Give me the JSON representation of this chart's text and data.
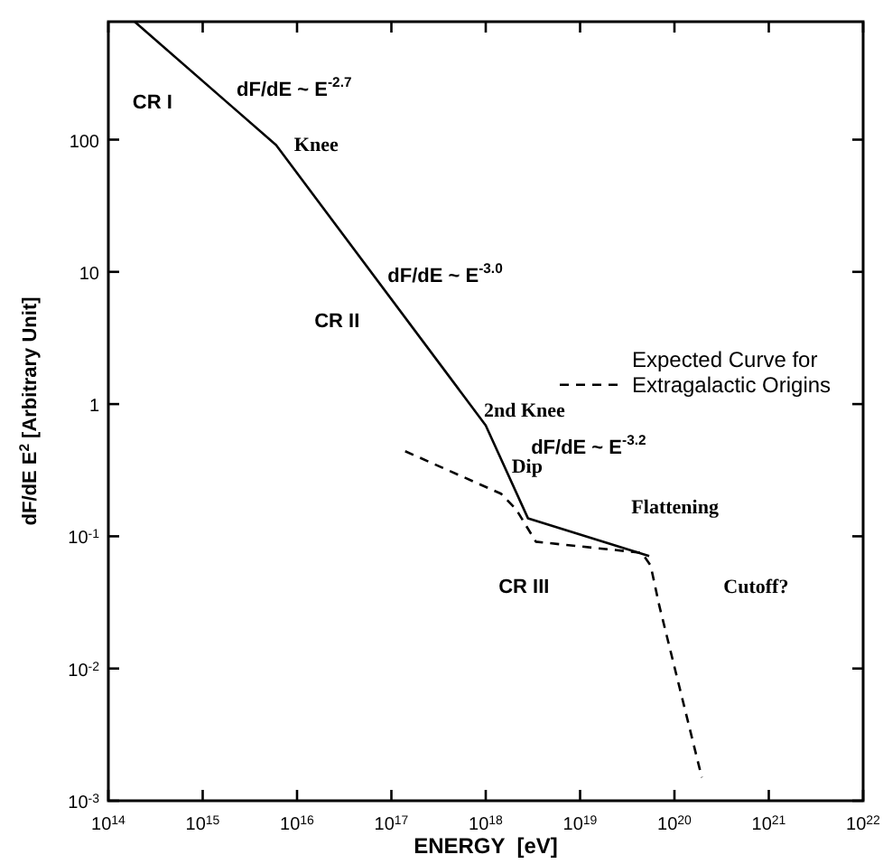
{
  "chart_data": {
    "type": "line",
    "xlabel": "ENERGY  [eV]",
    "ylabel": "dF/dE E$^{2}$ [Arbitrary Unit]",
    "log": "xy",
    "legend": "right",
    "xlim": [
      100000000000000.0,
      1e+22
    ],
    "ylim": [
      0.001,
      780
    ],
    "xticks": [
      {
        "value": 100000000000000.0,
        "label": "10$^{14}$"
      },
      {
        "value": 1000000000000000.0,
        "label": "10$^{15}$"
      },
      {
        "value": 1e+16,
        "label": "10$^{16}$"
      },
      {
        "value": 1e+17,
        "label": "10$^{17}$"
      },
      {
        "value": 1e+18,
        "label": "10$^{18}$"
      },
      {
        "value": 1e+19,
        "label": "10$^{19}$"
      },
      {
        "value": 1e+20,
        "label": "10$^{20}$"
      },
      {
        "value": 1e+21,
        "label": "10$^{21}$"
      },
      {
        "value": 1e+22,
        "label": "10$^{22}$"
      }
    ],
    "yticks": [
      {
        "value": 0.001,
        "label": "10$^{-3}$"
      },
      {
        "value": 0.01,
        "label": "10$^{-2}$"
      },
      {
        "value": 0.1,
        "label": "10$^{-1}$"
      },
      1,
      10,
      100
    ],
    "series": [
      {
        "color": "#000000",
        "line_style": "solid",
        "x": [
          190000000000000.0,
          6000000000000000.0,
          1e+18,
          2.8e+18,
          5.4e+19
        ],
        "values": [
          780,
          91,
          0.69,
          0.137,
          0.071
        ]
      },
      {
        "name": "Expected Curve for Extragalactic Origins",
        "color": "#000000",
        "line_style": "dashed",
        "x": [
          1.4e+17,
          1.45e+18,
          2.1e+18,
          3.4e+18,
          4.5e+19,
          5.6e+19,
          6.9e+19,
          1.95e+20
        ],
        "values": [
          0.44,
          0.21,
          0.16,
          0.091,
          0.075,
          0.06,
          0.03,
          0.0015
        ]
      }
    ],
    "annotations": [
      "CR I",
      "dF/dE ~ E$^{-2.7}$",
      {
        "text": "Knee",
        "x": 6000000000000000.0,
        "y": 91
      },
      "dF/dE ~ E$^{-3.0}$",
      "CR II",
      {
        "text": "2nd Knee",
        "x": 1e+18,
        "y": 0.69
      },
      "dF/dE ~ E$^{-3.2}$",
      {
        "text": "Dip",
        "x": 2.8e+18,
        "y": 0.137
      },
      "Flattening",
      "CR III",
      "Cutoff?"
    ]
  }
}
